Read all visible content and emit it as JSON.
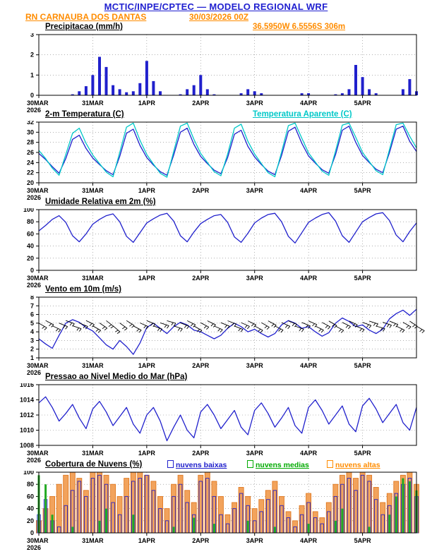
{
  "header": {
    "title": "MCTIC/INPE/CPTEC — MODELO REGIONAL WRF",
    "station": "RN CARNAUBA DOS DANTAS",
    "run": "30/03/2026 00Z",
    "location": "36.5950W 6.5556S 306m",
    "colors": {
      "title_blue": "#2020D0",
      "accent_orange": "#FF8C00",
      "line_blue": "#2020CC",
      "cyan": "#00C8C8",
      "green": "#00AA00"
    }
  },
  "chart_meta": {
    "hours_total": 168,
    "step_hours": 3,
    "start_label": "30MAR",
    "start_year": "2026",
    "x_ticks": [
      {
        "h": 0,
        "label": "30MAR",
        "sub": "2026"
      },
      {
        "h": 24,
        "label": "31MAR"
      },
      {
        "h": 48,
        "label": "1APR"
      },
      {
        "h": 72,
        "label": "2APR"
      },
      {
        "h": 96,
        "label": "3APR"
      },
      {
        "h": 120,
        "label": "4APR"
      },
      {
        "h": 144,
        "label": "5APR"
      }
    ]
  },
  "chart_data": [
    {
      "type": "bar",
      "title": "Precipitacao (mm/h)",
      "ylim": [
        0,
        3
      ],
      "y_ticks": [
        0,
        1,
        2,
        3
      ],
      "color": "#2020CC",
      "values": [
        0,
        0,
        0,
        0,
        0,
        0.05,
        0.2,
        0.45,
        1.0,
        1.9,
        1.4,
        0.5,
        0.3,
        0.15,
        0.2,
        0.6,
        1.7,
        0.7,
        0.2,
        0,
        0,
        0.05,
        0.3,
        0.5,
        1.0,
        0.3,
        0.05,
        0,
        0,
        0,
        0.1,
        0.3,
        0.2,
        0.1,
        0,
        0,
        0,
        0,
        0,
        0.1,
        0.1,
        0,
        0,
        0,
        0.05,
        0.1,
        0.3,
        1.5,
        0.9,
        0.3,
        0.1,
        0,
        0,
        0,
        0.3,
        0.8,
        0.2
      ]
    },
    {
      "type": "line",
      "title": "2-m Temperatura (C)",
      "title2": "Temperatura Aparente (C)",
      "ylim": [
        20,
        32
      ],
      "y_ticks": [
        20,
        22,
        24,
        26,
        28,
        30,
        32
      ],
      "series": [
        {
          "name": "2-m Temperatura (C)",
          "color": "#2020CC",
          "values": [
            25.8,
            24.6,
            23.2,
            21.9,
            24.8,
            28.6,
            29.4,
            26.8,
            24.9,
            23.6,
            22.4,
            21.6,
            25.2,
            29.8,
            30.6,
            27.4,
            25.0,
            23.5,
            22.2,
            21.5,
            25.5,
            30.0,
            30.8,
            27.6,
            25.2,
            23.8,
            22.5,
            21.8,
            25.0,
            29.6,
            30.4,
            27.2,
            25.1,
            23.6,
            22.3,
            21.6,
            25.4,
            30.2,
            31.0,
            27.8,
            25.3,
            23.9,
            22.6,
            21.9,
            25.6,
            30.4,
            31.2,
            28.0,
            25.4,
            24.0,
            22.7,
            22.0,
            26.0,
            30.6,
            31.2,
            28.2,
            26.2
          ]
        },
        {
          "name": "Temperatura Aparente (C)",
          "color": "#00C8C8",
          "values": [
            26.4,
            24.8,
            22.9,
            21.5,
            25.6,
            29.8,
            30.8,
            27.8,
            25.5,
            23.8,
            22.1,
            21.2,
            26.0,
            31.0,
            31.8,
            28.4,
            25.6,
            23.7,
            21.9,
            21.1,
            26.2,
            31.2,
            31.8,
            28.6,
            25.8,
            24.0,
            22.2,
            21.4,
            25.7,
            30.8,
            31.6,
            28.2,
            25.7,
            23.8,
            22.0,
            21.2,
            26.1,
            31.3,
            31.8,
            28.8,
            25.9,
            24.1,
            22.3,
            21.5,
            26.3,
            31.4,
            31.8,
            29.0,
            26.0,
            24.2,
            22.4,
            21.6,
            26.6,
            31.5,
            31.8,
            29.2,
            26.9
          ]
        }
      ]
    },
    {
      "type": "line",
      "title": "Umidade Relativa em 2m (%)",
      "ylim": [
        0,
        100
      ],
      "y_ticks": [
        0,
        20,
        40,
        60,
        80,
        100
      ],
      "series": [
        {
          "name": "Umidade Relativa em 2m (%)",
          "color": "#2020CC",
          "values": [
            65,
            74,
            84,
            90,
            79,
            57,
            47,
            60,
            76,
            84,
            90,
            93,
            80,
            56,
            46,
            62,
            78,
            85,
            91,
            94,
            81,
            57,
            47,
            63,
            77,
            84,
            90,
            92,
            79,
            55,
            46,
            61,
            78,
            86,
            92,
            94,
            80,
            56,
            45,
            62,
            79,
            86,
            92,
            95,
            81,
            57,
            46,
            63,
            80,
            87,
            93,
            95,
            82,
            58,
            47,
            64,
            78
          ]
        }
      ]
    },
    {
      "type": "wind",
      "title": "Vento em 10m (m/s)",
      "ylim": [
        1,
        8
      ],
      "y_ticks": [
        1,
        2,
        3,
        4,
        5,
        6,
        7,
        8
      ],
      "series": [
        {
          "name": "Vento em 10m (m/s)",
          "color": "#2020CC",
          "values": [
            3.2,
            2.6,
            2.1,
            3.6,
            5.0,
            5.4,
            5.1,
            4.5,
            4.1,
            3.3,
            2.5,
            2.0,
            3.0,
            2.3,
            1.4,
            2.7,
            4.5,
            5.0,
            4.4,
            3.8,
            4.6,
            5.1,
            4.8,
            4.2,
            4.0,
            3.6,
            3.2,
            3.6,
            4.4,
            5.0,
            4.6,
            4.0,
            4.3,
            3.8,
            3.4,
            3.8,
            4.8,
            5.3,
            5.0,
            4.4,
            4.6,
            4.0,
            3.5,
            3.9,
            5.0,
            5.6,
            5.2,
            4.6,
            4.8,
            4.2,
            3.8,
            4.3,
            5.5,
            6.1,
            6.5,
            5.9,
            6.6
          ]
        }
      ],
      "barb_dirs": [
        120,
        118,
        115,
        112,
        110,
        108,
        112,
        116,
        120,
        124,
        128,
        130,
        126,
        122,
        118,
        114,
        112,
        110,
        108,
        106,
        108,
        112,
        116,
        120,
        118,
        116,
        114,
        112,
        110,
        112,
        114,
        116,
        118,
        120,
        118,
        116,
        114,
        112,
        110,
        112,
        114,
        116,
        118,
        120,
        118,
        116,
        114,
        112,
        110,
        108,
        106,
        108,
        112,
        116,
        120,
        124,
        120
      ]
    },
    {
      "type": "line",
      "title": "Pressao ao Nivel Medio do Mar (hPa)",
      "ylim": [
        1008,
        1016
      ],
      "y_ticks": [
        1008,
        1010,
        1012,
        1014,
        1016
      ],
      "series": [
        {
          "name": "Pressao ao Nivel Medio do Mar (hPa)",
          "color": "#2020CC",
          "values": [
            1013.6,
            1014.4,
            1013.0,
            1011.2,
            1012.2,
            1013.4,
            1011.6,
            1010.2,
            1012.8,
            1013.8,
            1012.4,
            1010.6,
            1011.8,
            1013.0,
            1010.8,
            1009.6,
            1012.0,
            1013.0,
            1011.2,
            1008.6,
            1010.4,
            1012.0,
            1010.0,
            1009.0,
            1012.4,
            1013.4,
            1012.0,
            1010.2,
            1011.4,
            1012.6,
            1010.4,
            1009.4,
            1012.6,
            1013.6,
            1012.2,
            1010.4,
            1011.6,
            1013.0,
            1010.6,
            1009.6,
            1013.0,
            1014.0,
            1012.6,
            1010.8,
            1012.0,
            1013.2,
            1010.8,
            1009.8,
            1013.2,
            1014.2,
            1012.8,
            1011.0,
            1012.2,
            1013.4,
            1011.0,
            1010.0,
            1013.0
          ]
        }
      ]
    },
    {
      "type": "cloud",
      "title": "Cobertura de Nuvens (%)",
      "ylim": [
        0,
        100
      ],
      "y_ticks": [
        0,
        20,
        40,
        60,
        80,
        100
      ],
      "legend": [
        {
          "label": "nuvens baixas",
          "color": "#2020CC"
        },
        {
          "label": "nuvens medias",
          "color": "#00AA00"
        },
        {
          "label": "nuvens altas",
          "color": "#FF8C00"
        }
      ],
      "series": [
        {
          "name": "nuvens altas",
          "fill": "#F2A35C",
          "stroke": "#E07820",
          "values": [
            20,
            40,
            60,
            80,
            95,
            100,
            90,
            70,
            100,
            100,
            95,
            80,
            60,
            90,
            100,
            100,
            95,
            85,
            60,
            40,
            80,
            95,
            70,
            50,
            95,
            100,
            85,
            60,
            30,
            50,
            75,
            60,
            40,
            55,
            70,
            85,
            60,
            35,
            20,
            45,
            65,
            35,
            25,
            50,
            80,
            95,
            100,
            90,
            100,
            95,
            75,
            50,
            65,
            85,
            95,
            100,
            80
          ]
        },
        {
          "name": "nuvens baixas",
          "stroke": "#2020CC",
          "values": [
            30,
            55,
            20,
            10,
            45,
            70,
            85,
            60,
            90,
            95,
            80,
            50,
            30,
            60,
            85,
            90,
            95,
            70,
            40,
            20,
            60,
            80,
            50,
            30,
            85,
            90,
            60,
            30,
            15,
            40,
            65,
            45,
            20,
            35,
            55,
            70,
            45,
            25,
            10,
            30,
            50,
            25,
            15,
            35,
            60,
            80,
            90,
            70,
            95,
            85,
            55,
            30,
            45,
            65,
            80,
            90,
            60
          ]
        },
        {
          "name": "nuvens medias",
          "fill": "#22AA22",
          "values": [
            95,
            80,
            30,
            0,
            0,
            10,
            0,
            0,
            0,
            20,
            40,
            0,
            0,
            0,
            30,
            0,
            0,
            0,
            0,
            0,
            10,
            0,
            0,
            25,
            0,
            0,
            15,
            0,
            0,
            0,
            0,
            20,
            0,
            0,
            0,
            10,
            0,
            0,
            0,
            0,
            15,
            0,
            0,
            0,
            20,
            40,
            0,
            0,
            0,
            10,
            0,
            0,
            30,
            60,
            90,
            85,
            70
          ]
        }
      ]
    }
  ]
}
